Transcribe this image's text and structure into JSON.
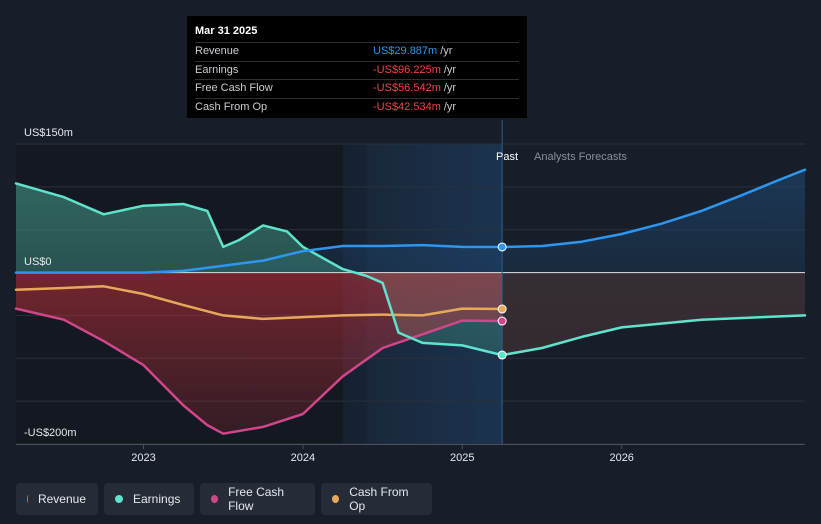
{
  "chart_data": {
    "type": "area",
    "y_unit_label": "US$",
    "y_tick_labels": {
      "top": "US$150m",
      "zero": "US$0",
      "bottom": "-US$200m"
    },
    "y_range": [
      -200,
      150
    ],
    "x_range": [
      2022.2,
      2027.15
    ],
    "x_ticks": [
      2023,
      2024,
      2025,
      2026
    ],
    "x_tick_labels": [
      "2023",
      "2024",
      "2025",
      "2026"
    ],
    "past_label": "Past",
    "forecast_label": "Analysts Forecasts",
    "past_region_start": 2024.25,
    "divider_x": 2025.25,
    "series": [
      {
        "name": "Revenue",
        "color": "#2d96f0",
        "points": [
          [
            2022.2,
            0
          ],
          [
            2022.7,
            0
          ],
          [
            2023.0,
            0
          ],
          [
            2023.25,
            2
          ],
          [
            2023.5,
            8
          ],
          [
            2023.75,
            14
          ],
          [
            2024.0,
            25
          ],
          [
            2024.25,
            31
          ],
          [
            2024.5,
            31
          ],
          [
            2024.75,
            32
          ],
          [
            2025.0,
            30
          ],
          [
            2025.25,
            29.887
          ],
          [
            2025.5,
            31
          ],
          [
            2025.75,
            36
          ],
          [
            2026.0,
            45
          ],
          [
            2026.25,
            57
          ],
          [
            2026.5,
            72
          ],
          [
            2026.75,
            90
          ],
          [
            2027.0,
            109
          ],
          [
            2027.15,
            120
          ]
        ]
      },
      {
        "name": "Earnings",
        "color": "#5fe3cc",
        "points": [
          [
            2022.2,
            104
          ],
          [
            2022.5,
            88
          ],
          [
            2022.75,
            68
          ],
          [
            2023.0,
            78
          ],
          [
            2023.25,
            80
          ],
          [
            2023.4,
            72
          ],
          [
            2023.5,
            30
          ],
          [
            2023.6,
            38
          ],
          [
            2023.75,
            55
          ],
          [
            2023.9,
            48
          ],
          [
            2024.0,
            30
          ],
          [
            2024.25,
            4
          ],
          [
            2024.4,
            -4
          ],
          [
            2024.5,
            -12
          ],
          [
            2024.6,
            -70
          ],
          [
            2024.75,
            -82
          ],
          [
            2025.0,
            -85
          ],
          [
            2025.25,
            -96.225
          ],
          [
            2025.5,
            -88
          ],
          [
            2025.75,
            -75
          ],
          [
            2026.0,
            -64
          ],
          [
            2026.5,
            -55
          ],
          [
            2027.15,
            -50
          ]
        ]
      },
      {
        "name": "Free Cash Flow",
        "color": "#d0468a",
        "points": [
          [
            2022.2,
            -42
          ],
          [
            2022.5,
            -55
          ],
          [
            2022.75,
            -80
          ],
          [
            2023.0,
            -108
          ],
          [
            2023.25,
            -155
          ],
          [
            2023.4,
            -178
          ],
          [
            2023.5,
            -188
          ],
          [
            2023.75,
            -180
          ],
          [
            2024.0,
            -165
          ],
          [
            2024.25,
            -121
          ],
          [
            2024.5,
            -88
          ],
          [
            2024.75,
            -72
          ],
          [
            2025.0,
            -56
          ],
          [
            2025.25,
            -56.542
          ]
        ]
      },
      {
        "name": "Cash From Op",
        "color": "#e8a85a",
        "points": [
          [
            2022.2,
            -20
          ],
          [
            2022.5,
            -18
          ],
          [
            2022.75,
            -16
          ],
          [
            2023.0,
            -25
          ],
          [
            2023.25,
            -38
          ],
          [
            2023.5,
            -50
          ],
          [
            2023.75,
            -54
          ],
          [
            2024.0,
            -52
          ],
          [
            2024.25,
            -50
          ],
          [
            2024.5,
            -49
          ],
          [
            2024.75,
            -50
          ],
          [
            2025.0,
            -42
          ],
          [
            2025.25,
            -42.534
          ]
        ]
      }
    ]
  },
  "tooltip": {
    "date": "Mar 31 2025",
    "rows": [
      {
        "label": "Revenue",
        "value": "US$29.887m",
        "unit": "/yr",
        "tone": "pos"
      },
      {
        "label": "Earnings",
        "value": "-US$96.225m",
        "unit": "/yr",
        "tone": "neg"
      },
      {
        "label": "Free Cash Flow",
        "value": "-US$56.542m",
        "unit": "/yr",
        "tone": "neg"
      },
      {
        "label": "Cash From Op",
        "value": "-US$42.534m",
        "unit": "/yr",
        "tone": "neg"
      }
    ]
  },
  "legend": [
    {
      "label": "Revenue",
      "color": "#2d96f0"
    },
    {
      "label": "Earnings",
      "color": "#5fe3cc"
    },
    {
      "label": "Free Cash Flow",
      "color": "#d0468a"
    },
    {
      "label": "Cash From Op",
      "color": "#e8a85a"
    }
  ]
}
